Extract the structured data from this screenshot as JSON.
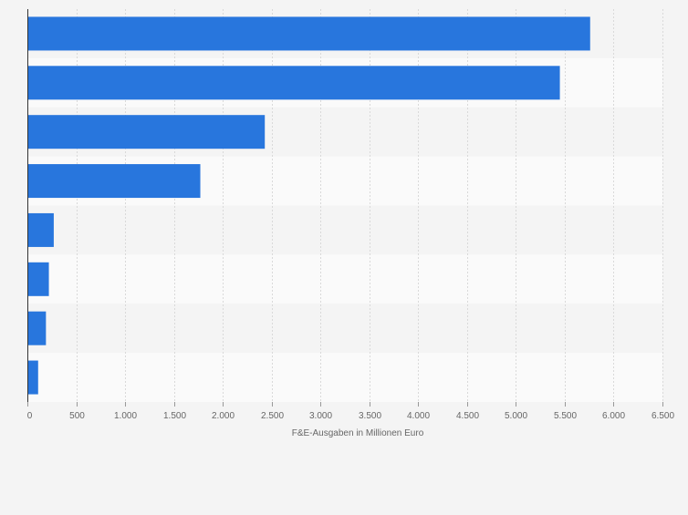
{
  "chart_data": {
    "type": "bar",
    "orientation": "horizontal",
    "categories": [
      "",
      "",
      "",
      "",
      "",
      "",
      "",
      ""
    ],
    "values": [
      5760,
      5450,
      2430,
      1770,
      270,
      220,
      190,
      110
    ],
    "xlabel": "F&E-Ausgaben in Millionen Euro",
    "ylabel": "",
    "xlim": [
      0,
      6500
    ],
    "xticks": [
      0,
      500,
      1000,
      1500,
      2000,
      2500,
      3000,
      3500,
      4000,
      4500,
      5000,
      5500,
      6000,
      6500
    ],
    "xtick_labels": [
      "0",
      "500",
      "1.000",
      "1.500",
      "2.000",
      "2.500",
      "3.000",
      "3.500",
      "4.000",
      "4.500",
      "5.000",
      "5.500",
      "6.000",
      "6.500"
    ],
    "grid": true,
    "legend": "none",
    "bar_color": "#2876dd",
    "band_colors": [
      "#f4f4f4",
      "#fafafa"
    ]
  }
}
